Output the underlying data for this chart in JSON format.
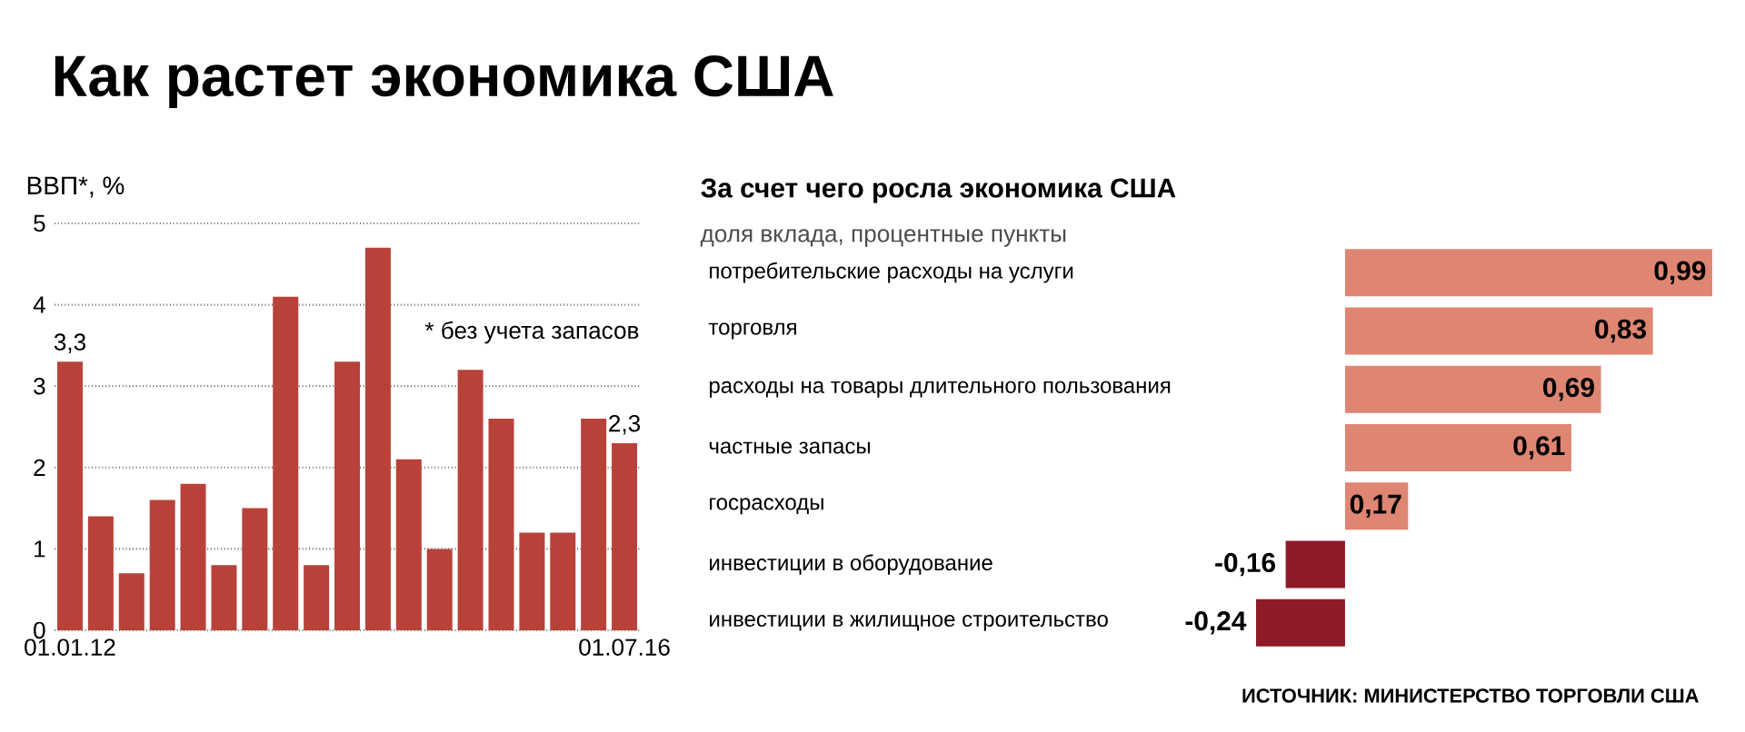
{
  "chart_data": [
    {
      "type": "bar",
      "title": "Как растет экономика США",
      "ylabel": "ВВП*, %",
      "categories": [
        "01.01.12",
        null,
        null,
        null,
        null,
        null,
        null,
        null,
        null,
        null,
        null,
        null,
        null,
        null,
        null,
        null,
        null,
        null,
        "01.07.16"
      ],
      "values": [
        3.3,
        1.4,
        0.7,
        1.6,
        1.8,
        0.8,
        1.5,
        4.1,
        0.8,
        3.3,
        4.7,
        2.1,
        1.0,
        3.2,
        2.6,
        1.2,
        1.2,
        2.6,
        2.3
      ],
      "value_labels": [
        "3,3",
        null,
        null,
        null,
        null,
        null,
        null,
        null,
        null,
        null,
        null,
        null,
        null,
        null,
        null,
        null,
        null,
        null,
        "2,3"
      ],
      "color": "#b8423a",
      "ylim": [
        0,
        5
      ],
      "yticks": [
        0,
        1,
        2,
        3,
        4,
        5
      ],
      "grid": "y",
      "annotations": [
        "* без учета запасов"
      ]
    },
    {
      "type": "bar",
      "orientation": "horizontal",
      "title": "За счет чего росла экономика США",
      "subtitle": "доля вклада, процентные пункты",
      "categories": [
        "потребительские расходы на услуги",
        "торговля",
        "расходы на товары длительного пользования",
        "частные запасы",
        "госрасходы",
        "инвестиции в оборудование",
        "инвестиции в жилищное строительство"
      ],
      "values": [
        0.99,
        0.83,
        0.69,
        0.61,
        0.17,
        -0.16,
        -0.24
      ],
      "value_labels": [
        "0,99",
        "0,83",
        "0,69",
        "0,61",
        "0,17",
        "-0,16",
        "-0,24"
      ],
      "colors": [
        "#de8672",
        "#de8672",
        "#de8672",
        "#de8672",
        "#de8672",
        "#8e1b27",
        "#8e1b27"
      ],
      "tick_labels": "y",
      "annotations": [
        "ИСТОЧНИК: МИНИСТЕРСТВО ТОРГОВЛИ США"
      ]
    }
  ]
}
